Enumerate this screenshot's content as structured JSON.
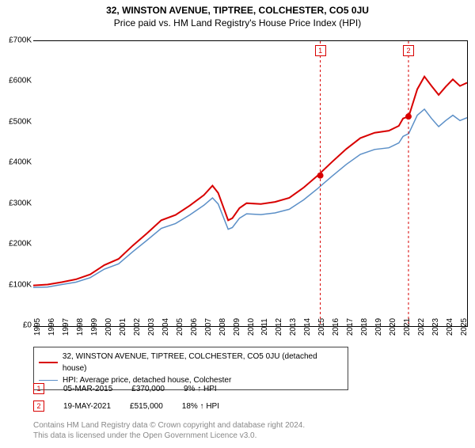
{
  "title": "32, WINSTON AVENUE, TIPTREE, COLCHESTER, CO5 0JU",
  "subtitle": "Price paid vs. HM Land Registry's House Price Index (HPI)",
  "chart": {
    "type": "line",
    "background_color": "#ffffff",
    "x_years": [
      1995,
      1996,
      1997,
      1998,
      1999,
      2000,
      2001,
      2002,
      2003,
      2004,
      2005,
      2006,
      2007,
      2008,
      2009,
      2010,
      2011,
      2012,
      2013,
      2014,
      2015,
      2016,
      2017,
      2018,
      2019,
      2020,
      2021,
      2022,
      2023,
      2024,
      2025
    ],
    "xlim": [
      1995,
      2025.5
    ],
    "ylim": [
      0,
      700000
    ],
    "ytick_step": 100000,
    "y_ticks": [
      "£0",
      "£100K",
      "£200K",
      "£300K",
      "£400K",
      "£500K",
      "£600K",
      "£700K"
    ],
    "x_tick_fontsize": 10,
    "y_tick_fontsize": 10,
    "grid": false,
    "series": [
      {
        "name": "32, WINSTON AVENUE, TIPTREE, COLCHESTER, CO5 0JU (detached house)",
        "color": "#d80000",
        "line_width": 2,
        "data": [
          [
            1995,
            100000
          ],
          [
            1996,
            102000
          ],
          [
            1997,
            108000
          ],
          [
            1998,
            115000
          ],
          [
            1999,
            127000
          ],
          [
            2000,
            150000
          ],
          [
            2001,
            165000
          ],
          [
            2002,
            198000
          ],
          [
            2003,
            228000
          ],
          [
            2004,
            260000
          ],
          [
            2005,
            273000
          ],
          [
            2006,
            296000
          ],
          [
            2007,
            322000
          ],
          [
            2007.6,
            345000
          ],
          [
            2008,
            327000
          ],
          [
            2008.7,
            260000
          ],
          [
            2009,
            265000
          ],
          [
            2009.5,
            290000
          ],
          [
            2010,
            302000
          ],
          [
            2011,
            300000
          ],
          [
            2012,
            305000
          ],
          [
            2013,
            315000
          ],
          [
            2014,
            340000
          ],
          [
            2015,
            370000
          ],
          [
            2016,
            403000
          ],
          [
            2017,
            435000
          ],
          [
            2018,
            462000
          ],
          [
            2019,
            475000
          ],
          [
            2020,
            480000
          ],
          [
            2020.7,
            492000
          ],
          [
            2021,
            510000
          ],
          [
            2021.4,
            515000
          ],
          [
            2022,
            582000
          ],
          [
            2022.5,
            613000
          ],
          [
            2023,
            590000
          ],
          [
            2023.5,
            568000
          ],
          [
            2024,
            588000
          ],
          [
            2024.5,
            606000
          ],
          [
            2025,
            590000
          ],
          [
            2025.5,
            598000
          ]
        ]
      },
      {
        "name": "HPI: Average price, detached house, Colchester",
        "color": "#5b8fc7",
        "line_width": 1.5,
        "data": [
          [
            1995,
            95000
          ],
          [
            1996,
            96000
          ],
          [
            1997,
            102000
          ],
          [
            1998,
            108000
          ],
          [
            1999,
            119000
          ],
          [
            2000,
            140000
          ],
          [
            2001,
            153000
          ],
          [
            2002,
            183000
          ],
          [
            2003,
            211000
          ],
          [
            2004,
            240000
          ],
          [
            2005,
            252000
          ],
          [
            2006,
            273000
          ],
          [
            2007,
            297000
          ],
          [
            2007.6,
            315000
          ],
          [
            2008,
            300000
          ],
          [
            2008.7,
            238000
          ],
          [
            2009,
            242000
          ],
          [
            2009.5,
            265000
          ],
          [
            2010,
            276000
          ],
          [
            2011,
            274000
          ],
          [
            2012,
            278000
          ],
          [
            2013,
            287000
          ],
          [
            2014,
            310000
          ],
          [
            2015,
            338000
          ],
          [
            2016,
            368000
          ],
          [
            2017,
            397000
          ],
          [
            2018,
            422000
          ],
          [
            2019,
            434000
          ],
          [
            2020,
            438000
          ],
          [
            2020.7,
            450000
          ],
          [
            2021,
            466000
          ],
          [
            2021.4,
            473000
          ],
          [
            2022,
            518000
          ],
          [
            2022.5,
            533000
          ],
          [
            2023,
            510000
          ],
          [
            2023.5,
            490000
          ],
          [
            2024,
            505000
          ],
          [
            2024.5,
            518000
          ],
          [
            2025,
            505000
          ],
          [
            2025.5,
            512000
          ]
        ]
      }
    ],
    "transactions": [
      {
        "n": "1",
        "x": 2015.18,
        "price": 370000,
        "date": "05-MAR-2015",
        "price_label": "£370,000",
        "hpi_label": "9% ↑ HPI",
        "color": "#d80000"
      },
      {
        "n": "2",
        "x": 2021.38,
        "price": 515000,
        "date": "19-MAY-2021",
        "price_label": "£515,000",
        "hpi_label": "18% ↑ HPI",
        "color": "#d80000"
      }
    ],
    "marker_line_color": "#d80000",
    "marker_dash": "3,3",
    "marker_dot_radius": 4
  },
  "legend": {
    "border_color": "#444444",
    "fontsize": 10
  },
  "footer": {
    "line1": "Contains HM Land Registry data © Crown copyright and database right 2024.",
    "line2": "This data is licensed under the Open Government Licence v3.0.",
    "color": "#888888"
  }
}
